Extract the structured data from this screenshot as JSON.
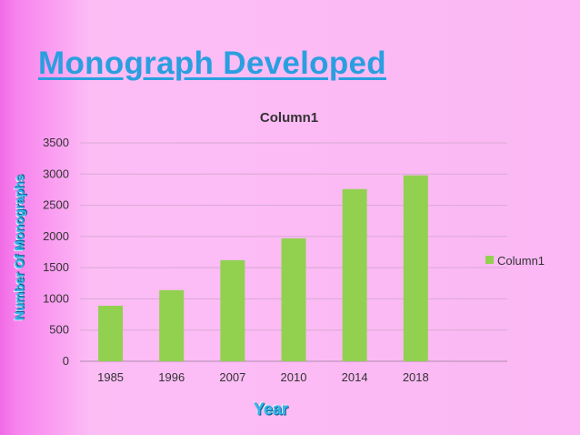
{
  "slide": {
    "title": "Monograph Developed",
    "y_axis_title": "Number Of Monographs",
    "x_axis_title": "Year"
  },
  "chart_data": {
    "type": "bar",
    "title": "Column1",
    "categories": [
      "1985",
      "1996",
      "2007",
      "2010",
      "2014",
      "2018"
    ],
    "series": [
      {
        "name": "Column1",
        "values": [
          890,
          1140,
          1620,
          1970,
          2760,
          2980
        ]
      }
    ],
    "xlabel": "Year",
    "ylabel": "Number Of Monographs",
    "ylim": [
      0,
      3500
    ],
    "yticks": [
      0,
      500,
      1000,
      1500,
      2000,
      2500,
      3000,
      3500
    ],
    "grid": true,
    "legend": "right",
    "colors": {
      "bar": "#92d050",
      "grid": "#d9a9d5",
      "axis": "#b08cb0"
    }
  }
}
